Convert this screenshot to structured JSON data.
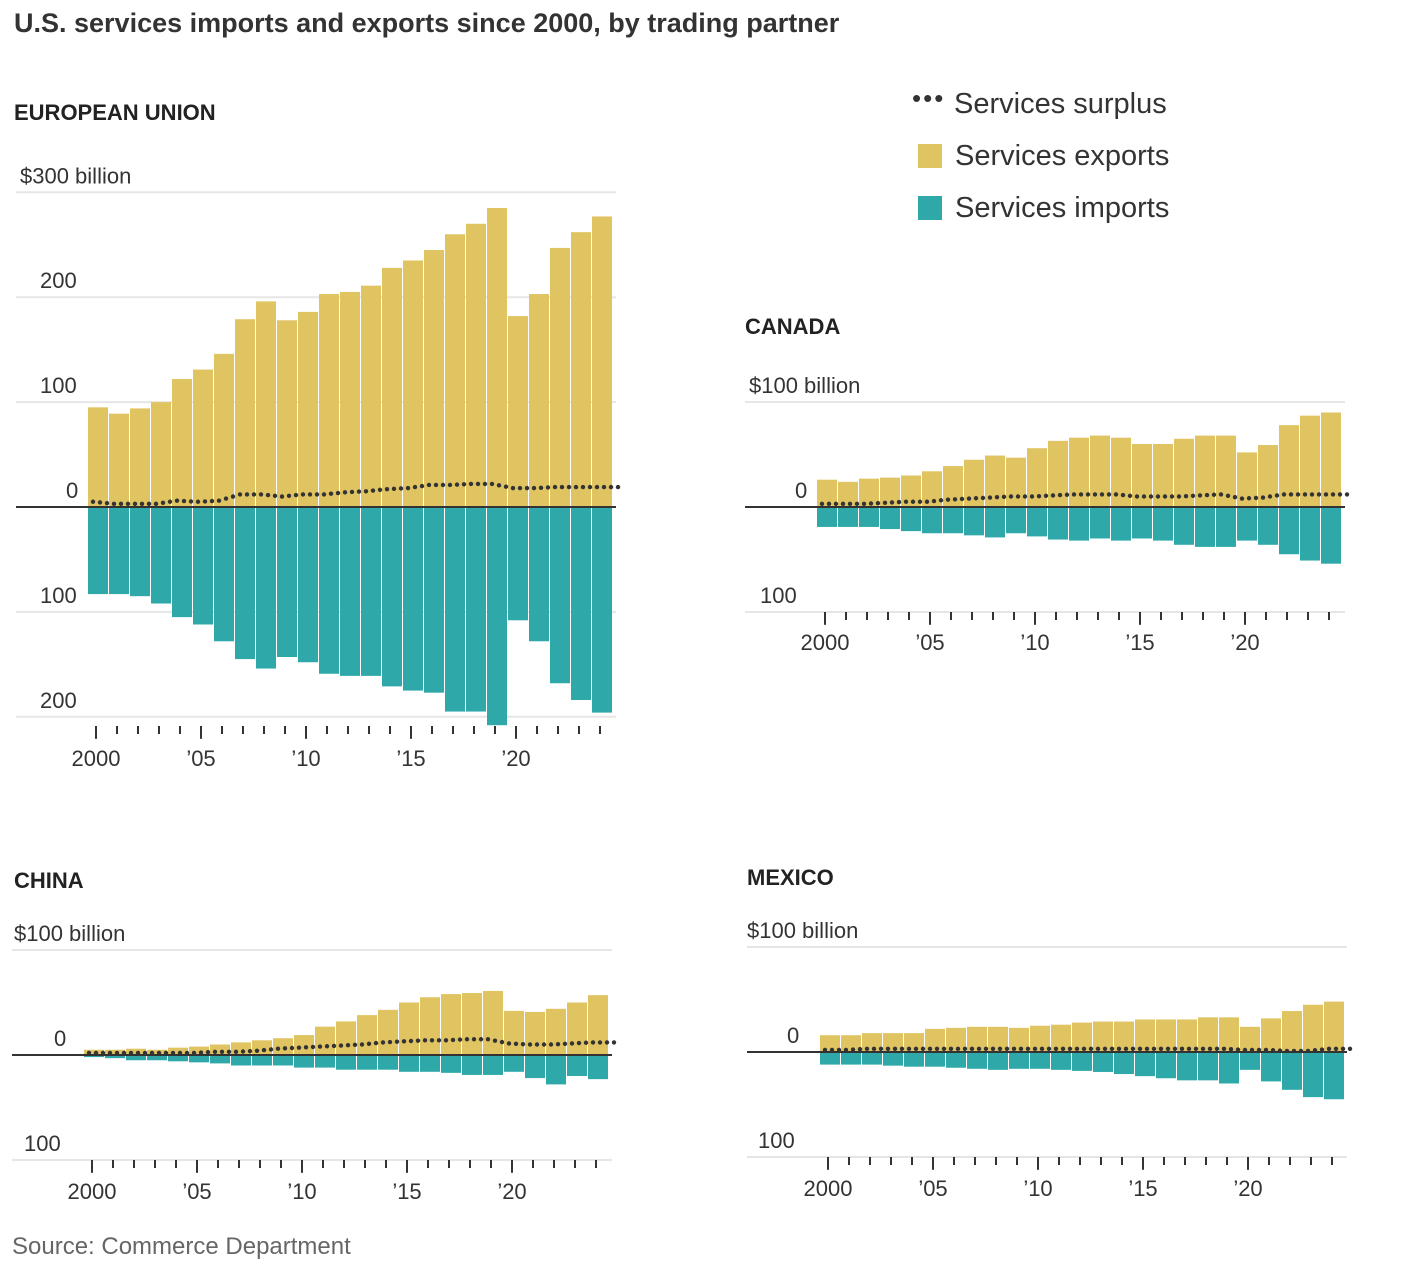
{
  "title": "U.S. services imports and exports since 2000, by trading partner",
  "source": "Source:  Commerce Department",
  "legend": {
    "surplus_label": "Services surplus",
    "exports_label": "Services exports",
    "imports_label": "Services imports"
  },
  "colors": {
    "exports": "#e0c462",
    "imports": "#2fa8aa",
    "surplus": "#333333",
    "gridline": "#e6e6e6",
    "zero_line": "#333333"
  },
  "chart_data": [
    {
      "type": "bar",
      "title": "EUROPEAN UNION",
      "ytick_labels": [
        "$300 billion",
        "200",
        "100",
        "0",
        "100",
        "200"
      ],
      "ytick_values": [
        300,
        200,
        100,
        0,
        -100,
        -200
      ],
      "ylim": [
        -210,
        300
      ],
      "xtick_labels": [
        "2000",
        "’05",
        "’10",
        "’15",
        "’20"
      ],
      "x": [
        2000,
        2001,
        2002,
        2003,
        2004,
        2005,
        2006,
        2007,
        2008,
        2009,
        2010,
        2011,
        2012,
        2013,
        2014,
        2015,
        2016,
        2017,
        2018,
        2019,
        2020,
        2021,
        2022,
        2023,
        2024
      ],
      "series": [
        {
          "name": "Services exports",
          "values": [
            95,
            89,
            94,
            100,
            122,
            131,
            146,
            179,
            196,
            178,
            186,
            203,
            205,
            211,
            228,
            235,
            245,
            260,
            270,
            285,
            182,
            203,
            247,
            262,
            277
          ]
        },
        {
          "name": "Services imports",
          "values": [
            -83,
            -83,
            -85,
            -92,
            -105,
            -112,
            -128,
            -145,
            -154,
            -143,
            -148,
            -159,
            -161,
            -161,
            -171,
            -175,
            -177,
            -195,
            -195,
            -208,
            -108,
            -128,
            -168,
            -184,
            -196
          ]
        },
        {
          "name": "Services surplus",
          "values": [
            5,
            3,
            3,
            3,
            6,
            5,
            6,
            12,
            12,
            10,
            12,
            12,
            14,
            15,
            17,
            18,
            21,
            21,
            22,
            22,
            18,
            18,
            19,
            19,
            19
          ]
        }
      ]
    },
    {
      "type": "bar",
      "title": "CANADA",
      "ytick_labels": [
        "$100 billion",
        "0",
        "100"
      ],
      "ytick_values": [
        100,
        0,
        -100
      ],
      "ylim": [
        -100,
        100
      ],
      "xtick_labels": [
        "2000",
        "’05",
        "’10",
        "’15",
        "’20"
      ],
      "x": [
        2000,
        2001,
        2002,
        2003,
        2004,
        2005,
        2006,
        2007,
        2008,
        2009,
        2010,
        2011,
        2012,
        2013,
        2014,
        2015,
        2016,
        2017,
        2018,
        2019,
        2020,
        2021,
        2022,
        2023,
        2024
      ],
      "series": [
        {
          "name": "Services exports",
          "values": [
            26,
            24,
            27,
            28,
            30,
            34,
            39,
            45,
            49,
            47,
            56,
            63,
            66,
            68,
            66,
            60,
            60,
            65,
            68,
            68,
            52,
            59,
            78,
            87,
            90
          ]
        },
        {
          "name": "Services imports",
          "values": [
            -19,
            -19,
            -19,
            -21,
            -23,
            -25,
            -25,
            -27,
            -29,
            -25,
            -28,
            -31,
            -32,
            -30,
            -32,
            -30,
            -32,
            -36,
            -38,
            -38,
            -32,
            -36,
            -45,
            -51,
            -54
          ]
        },
        {
          "name": "Services surplus",
          "values": [
            3,
            3,
            3,
            4,
            5,
            5,
            7,
            8,
            9,
            10,
            10,
            11,
            12,
            12,
            12,
            10,
            10,
            10,
            11,
            12,
            8,
            9,
            12,
            12,
            12
          ]
        }
      ]
    },
    {
      "type": "bar",
      "title": "CHINA",
      "ytick_labels": [
        "$100 billion",
        "0",
        "100"
      ],
      "ytick_values": [
        100,
        0,
        -100
      ],
      "ylim": [
        -100,
        100
      ],
      "xtick_labels": [
        "2000",
        "’05",
        "’10",
        "’15",
        "’20"
      ],
      "x": [
        2000,
        2001,
        2002,
        2003,
        2004,
        2005,
        2006,
        2007,
        2008,
        2009,
        2010,
        2011,
        2012,
        2013,
        2014,
        2015,
        2016,
        2017,
        2018,
        2019,
        2020,
        2021,
        2022,
        2023,
        2024
      ],
      "series": [
        {
          "name": "Services exports",
          "values": [
            5,
            5,
            6,
            5,
            7,
            8,
            10,
            12,
            14,
            16,
            19,
            27,
            32,
            38,
            43,
            50,
            55,
            58,
            59,
            61,
            42,
            41,
            44,
            50,
            57
          ]
        },
        {
          "name": "Services imports",
          "values": [
            -2,
            -3,
            -5,
            -5,
            -6,
            -7,
            -8,
            -10,
            -10,
            -10,
            -12,
            -12,
            -14,
            -14,
            -14,
            -16,
            -16,
            -17,
            -19,
            -19,
            -16,
            -22,
            -28,
            -20,
            -23
          ]
        },
        {
          "name": "Services surplus",
          "values": [
            2,
            2,
            2,
            2,
            2,
            2,
            3,
            3,
            4,
            6,
            7,
            8,
            9,
            10,
            12,
            13,
            14,
            14,
            15,
            15,
            11,
            10,
            10,
            11,
            12
          ]
        }
      ]
    },
    {
      "type": "bar",
      "title": "MEXICO",
      "ytick_labels": [
        "$100 billion",
        "0",
        "100"
      ],
      "ytick_values": [
        100,
        0,
        -100
      ],
      "ylim": [
        -100,
        100
      ],
      "xtick_labels": [
        "2000",
        "’05",
        "’10",
        "’15",
        "’20"
      ],
      "x": [
        2000,
        2001,
        2002,
        2003,
        2004,
        2005,
        2006,
        2007,
        2008,
        2009,
        2010,
        2011,
        2012,
        2013,
        2014,
        2015,
        2016,
        2017,
        2018,
        2019,
        2020,
        2021,
        2022,
        2023,
        2024
      ],
      "series": [
        {
          "name": "Services exports",
          "values": [
            16,
            16,
            18,
            18,
            18,
            22,
            23,
            24,
            24,
            23,
            25,
            26,
            28,
            29,
            29,
            31,
            31,
            31,
            33,
            33,
            24,
            32,
            39,
            45,
            48
          ]
        },
        {
          "name": "Services imports",
          "values": [
            -12,
            -12,
            -12,
            -13,
            -14,
            -14,
            -15,
            -16,
            -17,
            -16,
            -16,
            -17,
            -18,
            -19,
            -21,
            -23,
            -25,
            -27,
            -27,
            -30,
            -17,
            -28,
            -36,
            -43,
            -45
          ]
        },
        {
          "name": "Services surplus",
          "values": [
            2,
            2,
            3,
            3,
            3,
            3,
            3,
            3,
            3,
            3,
            3,
            3,
            3,
            3,
            3,
            3,
            3,
            3,
            3,
            3,
            2,
            2,
            1,
            1,
            3
          ]
        }
      ]
    }
  ]
}
